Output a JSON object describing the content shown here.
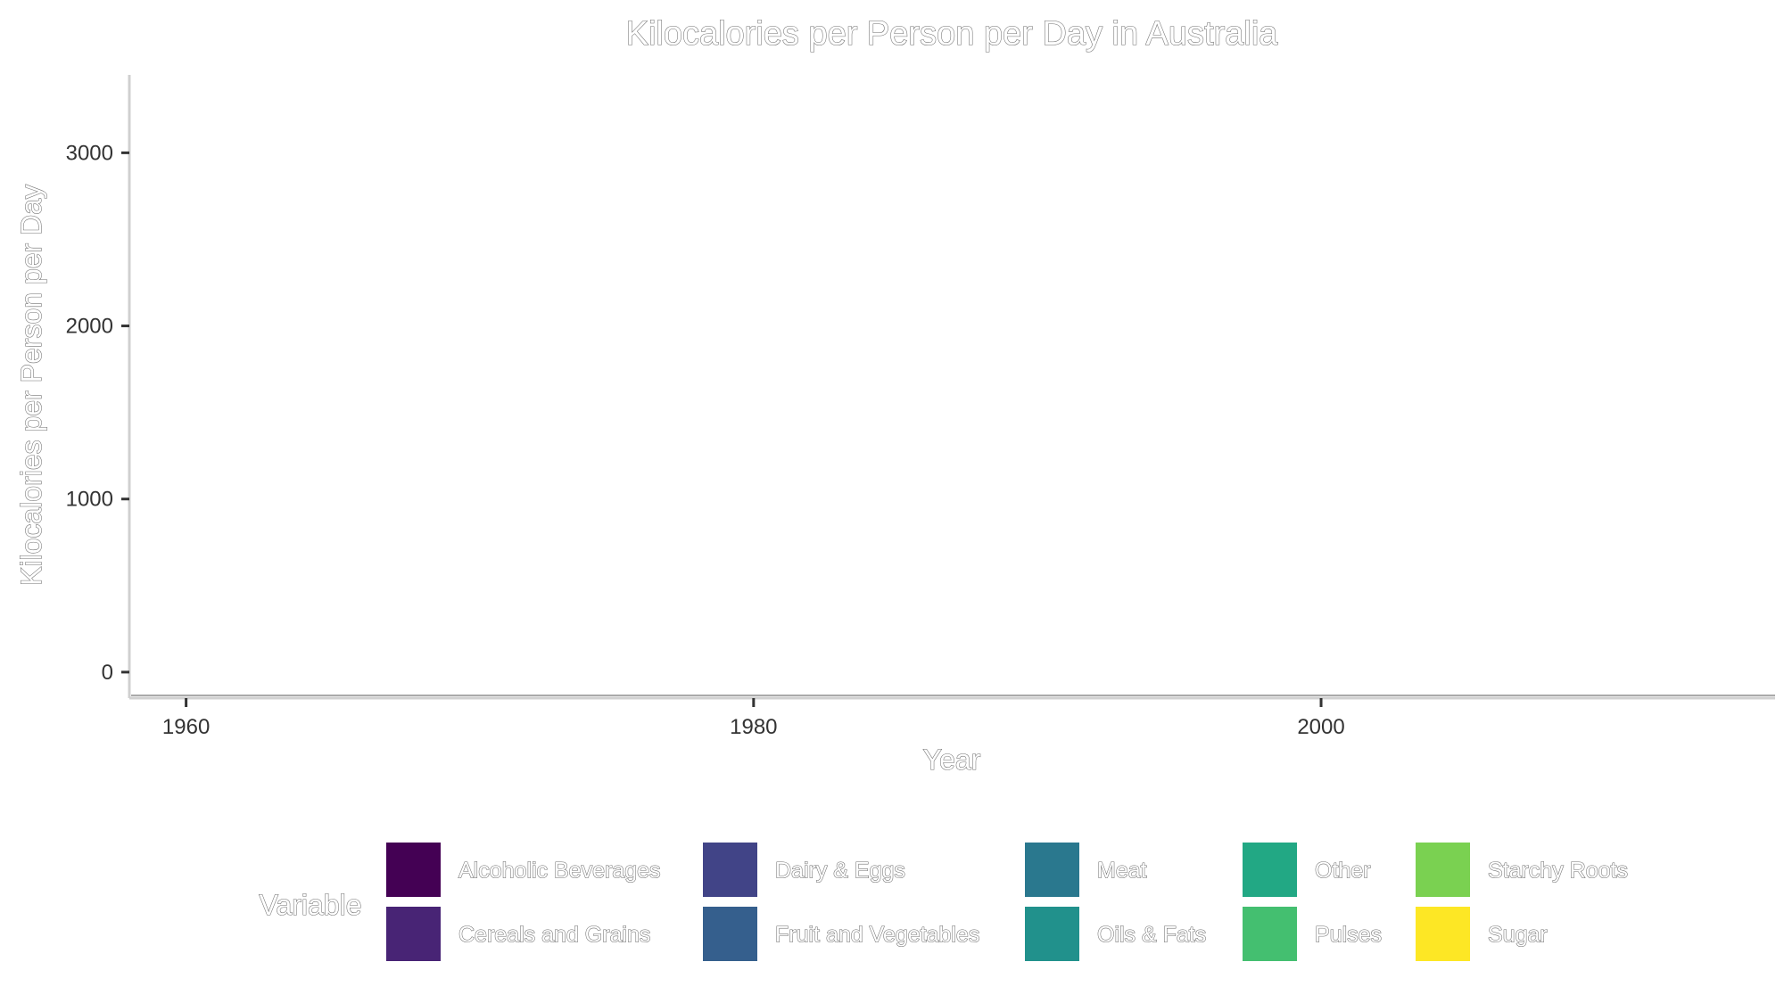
{
  "chart_data": {
    "type": "area",
    "title": "Kilocalories per Person per Day in Australia",
    "xlabel": "Year",
    "ylabel": "Kilocalories per Person per Day",
    "x_ticks": [
      "1960",
      "1980",
      "2000"
    ],
    "x_tick_values": [
      1960,
      1980,
      2000
    ],
    "y_ticks": [
      "0",
      "1000",
      "2000",
      "3000"
    ],
    "y_tick_values": [
      0,
      1000,
      2000,
      3000
    ],
    "xlim": [
      1958,
      2016
    ],
    "ylim": [
      -150,
      3450
    ],
    "grid": false,
    "legend": {
      "title": "Variable",
      "position": "bottom",
      "entries": [
        {
          "label": "Alcoholic Beverages",
          "color": "#440154"
        },
        {
          "label": "Cereals and Grains",
          "color": "#482475"
        },
        {
          "label": "Dairy & Eggs",
          "color": "#414487"
        },
        {
          "label": "Fruit and Vegetables",
          "color": "#355F8D"
        },
        {
          "label": "Meat",
          "color": "#2A788E"
        },
        {
          "label": "Oils & Fats",
          "color": "#21918C"
        },
        {
          "label": "Other",
          "color": "#22A884"
        },
        {
          "label": "Pulses",
          "color": "#44BF70"
        },
        {
          "label": "Starchy Roots",
          "color": "#7AD151"
        },
        {
          "label": "Sugar",
          "color": "#FDE725"
        }
      ]
    },
    "series": []
  }
}
